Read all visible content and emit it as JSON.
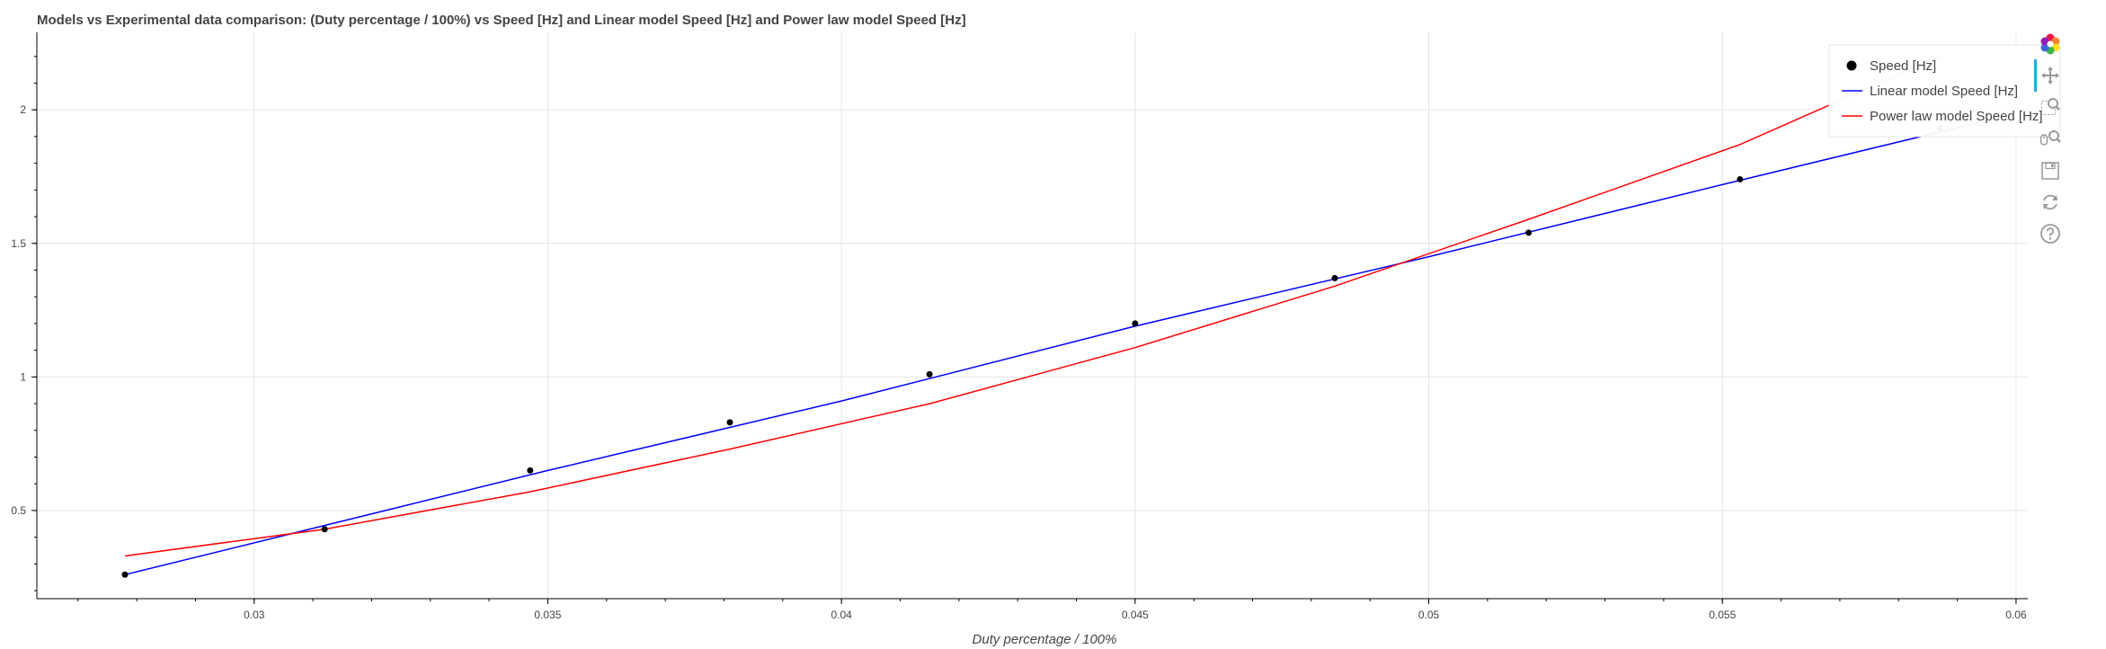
{
  "chart_data": {
    "type": "line",
    "title": "Models vs Experimental data comparison: (Duty percentage / 100%) vs Speed [Hz] and Linear model Speed [Hz] and Power law model Speed [Hz]",
    "xlabel": "Duty percentage / 100%",
    "ylabel": "",
    "xlim": [
      0.0263,
      0.0602
    ],
    "ylim": [
      0.17,
      2.29
    ],
    "x_ticks": [
      0.03,
      0.035,
      0.04,
      0.045,
      0.05,
      0.055,
      0.06
    ],
    "y_ticks": [
      0.5,
      1,
      1.5,
      2
    ],
    "x_tick_labels": [
      "0.03",
      "0.035",
      "0.04",
      "0.045",
      "0.05",
      "0.055",
      "0.06"
    ],
    "y_tick_labels": [
      "0.5",
      "1",
      "1.5",
      "2"
    ],
    "grid": true,
    "legend_position": "top-right",
    "series": [
      {
        "name": "Speed [Hz]",
        "kind": "scatter",
        "color": "#000000",
        "x": [
          0.0278,
          0.0312,
          0.0347,
          0.0381,
          0.0415,
          0.045,
          0.0484,
          0.0517,
          0.0553,
          0.0587
        ],
        "y": [
          0.26,
          0.43,
          0.65,
          0.83,
          1.01,
          1.2,
          1.37,
          1.54,
          1.74,
          1.93
        ]
      },
      {
        "name": "Linear model Speed [Hz]",
        "kind": "line",
        "color": "#0000ff",
        "x": [
          0.0278,
          0.035,
          0.04,
          0.045,
          0.05,
          0.055,
          0.0595
        ],
        "y": [
          0.26,
          0.65,
          0.91,
          1.19,
          1.45,
          1.72,
          1.96
        ]
      },
      {
        "name": "Power law model Speed [Hz]",
        "kind": "line",
        "color": "#ff0000",
        "x": [
          0.0278,
          0.0312,
          0.0347,
          0.0381,
          0.0415,
          0.045,
          0.0484,
          0.0517,
          0.0553,
          0.0587
        ],
        "y": [
          0.33,
          0.43,
          0.57,
          0.73,
          0.9,
          1.11,
          1.34,
          1.59,
          1.87,
          2.2
        ]
      }
    ]
  },
  "toolbar": {
    "tools": [
      {
        "name": "bokeh-logo-icon",
        "title": "Bokeh"
      },
      {
        "name": "pan-tool-icon",
        "title": "Pan"
      },
      {
        "name": "box-zoom-tool-icon",
        "title": "Box Zoom"
      },
      {
        "name": "wheel-zoom-tool-icon",
        "title": "Wheel Zoom"
      },
      {
        "name": "save-tool-icon",
        "title": "Save"
      },
      {
        "name": "reset-tool-icon",
        "title": "Reset"
      },
      {
        "name": "help-tool-icon",
        "title": "Help"
      }
    ],
    "colors": {
      "active": "#26aae1",
      "icon": "#999999"
    }
  }
}
